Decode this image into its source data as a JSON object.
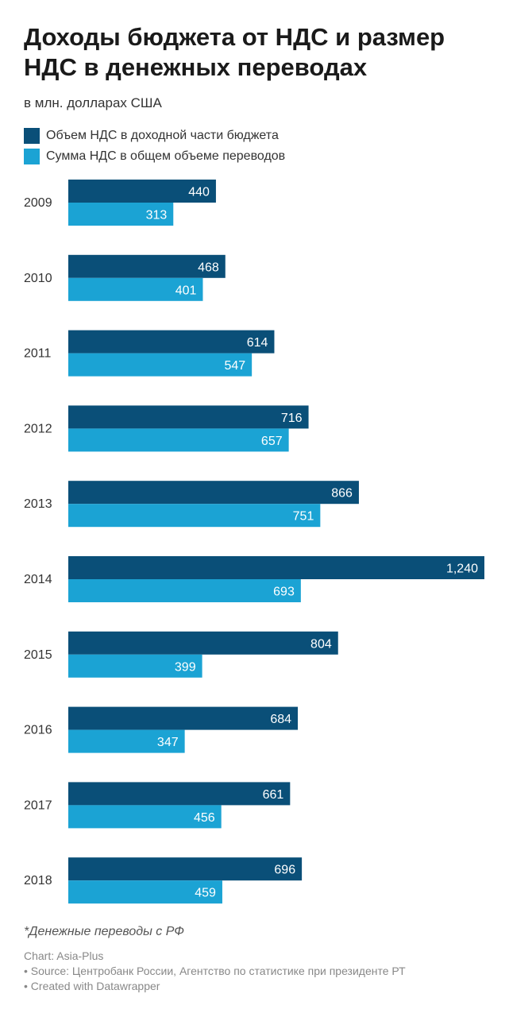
{
  "chart_data": {
    "type": "bar",
    "orientation": "horizontal",
    "title": "Доходы бюджета от НДС и размер НДС в денежных переводах",
    "subtitle": "в млн. долларах США",
    "categories": [
      "2009",
      "2010",
      "2011",
      "2012",
      "2013",
      "2014",
      "2015",
      "2016",
      "2017",
      "2018"
    ],
    "series": [
      {
        "name": "Объем НДС в доходной части бюджета",
        "color": "#0a4f78",
        "values": [
          440,
          468,
          614,
          716,
          866,
          1240,
          804,
          684,
          661,
          696
        ],
        "labels": [
          "440",
          "468",
          "614",
          "716",
          "866",
          "1,240",
          "804",
          "684",
          "661",
          "696"
        ]
      },
      {
        "name": "Сумма НДС в общем объеме переводов",
        "color": "#1ba3d4",
        "values": [
          313,
          401,
          547,
          657,
          751,
          693,
          399,
          347,
          456,
          459
        ],
        "labels": [
          "313",
          "401",
          "547",
          "657",
          "751",
          "693",
          "399",
          "347",
          "456",
          "459"
        ]
      }
    ],
    "xlim": [
      0,
      1240
    ],
    "grid": false,
    "legend_position": "top-left"
  },
  "note": "*Денежные переводы с РФ",
  "footer": {
    "credit": "Chart: Asia-Plus",
    "source": "• Source: Центробанк России, Агентство по статистике при президенте РТ",
    "created": "• Created with Datawrapper"
  }
}
